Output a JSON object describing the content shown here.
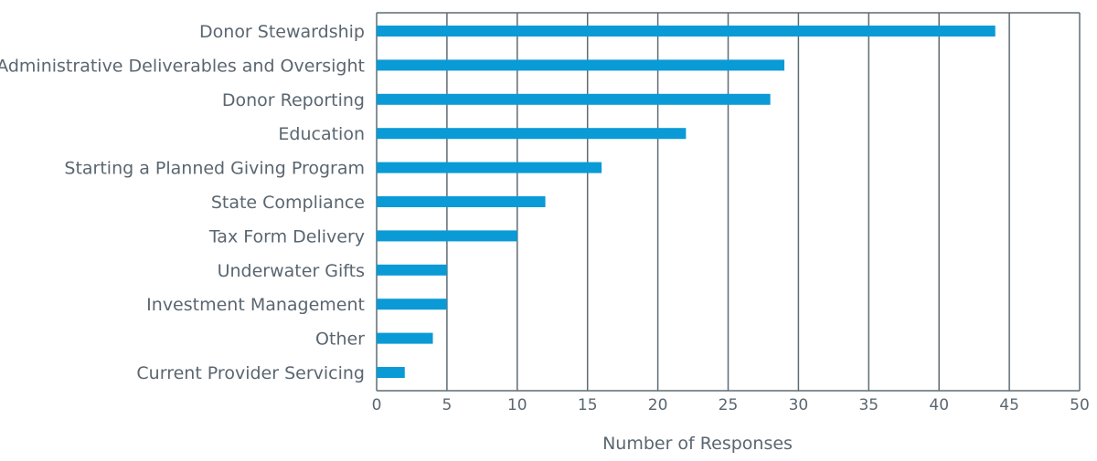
{
  "chart_data": {
    "type": "bar",
    "orientation": "horizontal",
    "title": "",
    "xlabel": "Number of Responses",
    "ylabel": "",
    "xlim": [
      0,
      50
    ],
    "xticks": [
      0,
      5,
      10,
      15,
      20,
      25,
      30,
      35,
      40,
      45,
      50
    ],
    "grid": true,
    "legend": "none",
    "categories": [
      "Donor Stewardship",
      "Administrative Deliverables and Oversight",
      "Donor Reporting",
      "Education",
      "Starting a Planned Giving Program",
      "State Compliance",
      "Tax Form Delivery",
      "Underwater Gifts",
      "Investment Management",
      "Other",
      "Current Provider Servicing"
    ],
    "values": [
      44,
      29,
      28,
      22,
      16,
      12,
      10,
      5,
      5,
      4,
      2
    ],
    "colors": {
      "bar": "#0a9ad6",
      "grid": "#5f6b73",
      "text": "#5a6670"
    }
  }
}
